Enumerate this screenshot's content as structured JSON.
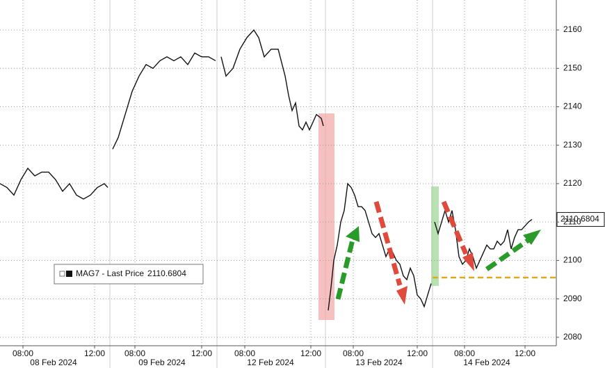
{
  "chart_data": {
    "type": "line",
    "x": [
      0,
      10,
      20,
      30,
      40,
      50,
      60,
      70,
      80,
      90,
      100,
      110,
      120,
      130,
      140,
      150,
      155,
      158,
      162,
      170,
      180,
      190,
      200,
      210,
      220,
      230,
      240,
      250,
      260,
      270,
      280,
      290,
      300,
      310,
      314,
      318,
      325,
      335,
      345,
      355,
      365,
      372,
      380,
      390,
      400,
      410,
      415,
      420,
      425,
      430,
      435,
      440,
      445,
      450,
      455,
      462,
      465,
      468,
      472,
      476,
      480,
      485,
      490,
      495,
      500,
      505,
      510,
      515,
      520,
      525,
      530,
      535,
      540,
      545,
      550,
      555,
      560,
      565,
      570,
      575,
      580,
      585,
      590,
      595,
      600,
      605,
      610,
      615,
      620,
      622,
      625,
      630,
      635,
      640,
      645,
      650,
      655,
      660,
      665,
      670,
      675,
      680,
      685,
      690,
      695,
      700,
      705,
      710,
      715,
      720,
      725,
      730,
      735,
      740,
      745,
      750,
      755,
      760,
      765
    ],
    "series": [
      {
        "name": "MAG7 - Last Price",
        "color": "#111111",
        "values": [
          2120,
          2119,
          2117,
          2121,
          2124,
          2122,
          2123,
          2123,
          2121,
          2118,
          2120,
          2117,
          2116,
          2117,
          2119,
          2120,
          2119,
          null,
          2129,
          2132,
          2138,
          2144,
          2148,
          2151,
          2150,
          2152,
          2153,
          2152,
          2153,
          2151,
          2154,
          2153,
          2153,
          2152,
          null,
          2153,
          2148,
          2150,
          2155,
          2158,
          2160,
          2158,
          2153,
          2155,
          2155,
          2148,
          2143,
          2139,
          2141,
          2135,
          2134,
          2136,
          2134,
          2136,
          2138,
          2137,
          2135,
          null,
          2087,
          2093,
          2100,
          2104,
          2110,
          2113,
          2120,
          2119,
          2117,
          2114,
          2114,
          2113,
          2110,
          2107,
          2106,
          2107,
          2104,
          2101,
          2103,
          2102,
          2100,
          2099,
          2096,
          2095,
          2098,
          2096,
          2091,
          2090,
          2088,
          2091,
          2094,
          null,
          2110,
          2107,
          2110,
          2113,
          2110,
          2113,
          2108,
          2101,
          2099,
          2100,
          2103,
          2101,
          2098,
          2100,
          2102,
          2104,
          2103,
          2103,
          2105,
          2104,
          2105,
          2108,
          2103,
          2106,
          2108,
          2108,
          2109,
          2110,
          2110.6804
        ]
      }
    ],
    "last_price": 2110.6804,
    "xlim": [
      0,
      800
    ],
    "ylim": [
      2077.8,
      2167.8
    ],
    "yticks": [
      2080,
      2090,
      2100,
      2110,
      2120,
      2130,
      2140,
      2150,
      2160
    ],
    "xticks": [
      {
        "value": 33,
        "label": "08:00"
      },
      {
        "value": 136,
        "label": "12:00"
      },
      {
        "value": 194,
        "label": "08:00"
      },
      {
        "value": 290,
        "label": "12:00"
      },
      {
        "value": 352,
        "label": "08:00"
      },
      {
        "value": 447,
        "label": "12:00"
      },
      {
        "value": 508,
        "label": "08:00"
      },
      {
        "value": 600,
        "label": "12:00"
      },
      {
        "value": 668,
        "label": "08:00"
      },
      {
        "value": 755,
        "label": "12:00"
      }
    ],
    "xdates": [
      {
        "value": 77,
        "label": "08 Feb 2024"
      },
      {
        "value": 233,
        "label": "09 Feb 2024"
      },
      {
        "value": 389,
        "label": "12 Feb 2024"
      },
      {
        "value": 545,
        "label": "13 Feb 2024"
      },
      {
        "value": 700,
        "label": "14 Feb 2024"
      }
    ],
    "grid": true
  }
}
